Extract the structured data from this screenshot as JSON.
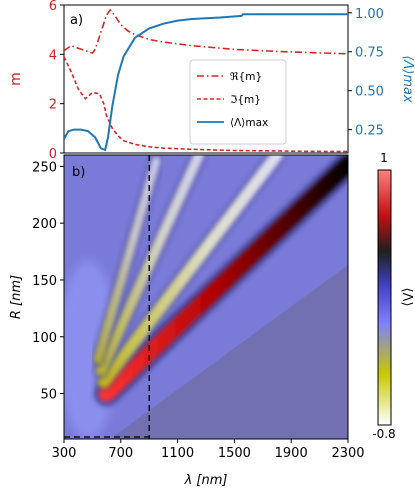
{
  "chart_data": [
    {
      "panel": "a)",
      "type": "line",
      "ylabel_left": "m",
      "ylabel_right": "⟨Λ⟩max",
      "ylim_left": [
        0,
        6
      ],
      "ylim_right": [
        0.1,
        1.05
      ],
      "xlim": [
        300,
        2300
      ],
      "yticks_left": [
        "0",
        "2",
        "4",
        "6"
      ],
      "yticks_left_values": [
        0,
        2,
        4,
        6
      ],
      "yticks_right": [
        "0.25",
        "0.50",
        "0.75",
        "1.00"
      ],
      "yticks_right_values": [
        0.25,
        0.5,
        0.75,
        1.0
      ],
      "legend_position": "center-right",
      "colors": {
        "left_axis": "#cc2222",
        "right_axis": "#1f77b4"
      },
      "series": [
        {
          "name": "ℜ{m}",
          "axis": "left",
          "style": "dashdot",
          "color": "#d62728",
          "x": [
            300,
            350,
            400,
            450,
            500,
            520,
            560,
            600,
            625,
            660,
            700,
            750,
            800,
            900,
            1000,
            1200,
            1500,
            1800,
            2000,
            2300
          ],
          "y": [
            4.15,
            4.35,
            4.25,
            4.15,
            4.05,
            4.2,
            4.9,
            5.6,
            5.8,
            5.55,
            5.2,
            4.95,
            4.8,
            4.6,
            4.5,
            4.35,
            4.2,
            4.12,
            4.08,
            4.02
          ]
        },
        {
          "name": "ℑ{m}",
          "axis": "left",
          "style": "dashed",
          "color": "#d62728",
          "x": [
            300,
            350,
            400,
            450,
            500,
            550,
            580,
            600,
            640,
            680,
            720,
            800,
            900,
            1000,
            1200,
            1500,
            1800,
            2000,
            2300
          ],
          "y": [
            3.9,
            3.3,
            2.6,
            2.2,
            2.45,
            2.4,
            2.0,
            1.5,
            1.0,
            0.7,
            0.5,
            0.35,
            0.25,
            0.2,
            0.15,
            0.1,
            0.08,
            0.07,
            0.06
          ]
        },
        {
          "name": "⟨Λ⟩max",
          "axis": "right",
          "style": "solid",
          "color": "#1f77b4",
          "x": [
            300,
            330,
            370,
            420,
            470,
            520,
            560,
            590,
            610,
            640,
            680,
            720,
            800,
            900,
            1000,
            1100,
            1200,
            1400,
            1550,
            1560,
            1800,
            2100,
            2300
          ],
          "y": [
            0.19,
            0.24,
            0.25,
            0.25,
            0.24,
            0.2,
            0.13,
            0.12,
            0.2,
            0.4,
            0.6,
            0.72,
            0.84,
            0.9,
            0.93,
            0.95,
            0.96,
            0.97,
            0.98,
            0.99,
            0.99,
            0.99,
            0.99
          ]
        }
      ]
    },
    {
      "panel": "b)",
      "type": "heatmap",
      "xlabel": "λ [nm]",
      "ylabel": "R [nm]",
      "xlim": [
        300,
        2300
      ],
      "ylim": [
        10,
        260
      ],
      "xticks": [
        "300",
        "700",
        "1100",
        "1500",
        "1900",
        "2300"
      ],
      "xticks_values": [
        300,
        700,
        1100,
        1500,
        1900,
        2300
      ],
      "yticks": [
        "50",
        "100",
        "150",
        "200",
        "250"
      ],
      "yticks_values": [
        50,
        100,
        150,
        200,
        250
      ],
      "colorbar_label": "⟨Λ⟩",
      "colorbar_range": [
        -0.8,
        1
      ],
      "colorbar_tick_labels": [
        "1",
        "-0.8"
      ],
      "marker_line_lambda": 900,
      "marker_line_R": 10,
      "ridges": [
        {
          "x": [
            600,
            2300
          ],
          "y": [
            50,
            252
          ],
          "strength": 1.0
        },
        {
          "x": [
            580,
            1800
          ],
          "y": [
            60,
            260
          ],
          "strength": 0.6
        },
        {
          "x": [
            560,
            1250
          ],
          "y": [
            70,
            260
          ],
          "strength": 0.45
        },
        {
          "x": [
            540,
            950
          ],
          "y": [
            80,
            255
          ],
          "strength": 0.3
        }
      ]
    }
  ],
  "icons": [
    "colorbar"
  ]
}
